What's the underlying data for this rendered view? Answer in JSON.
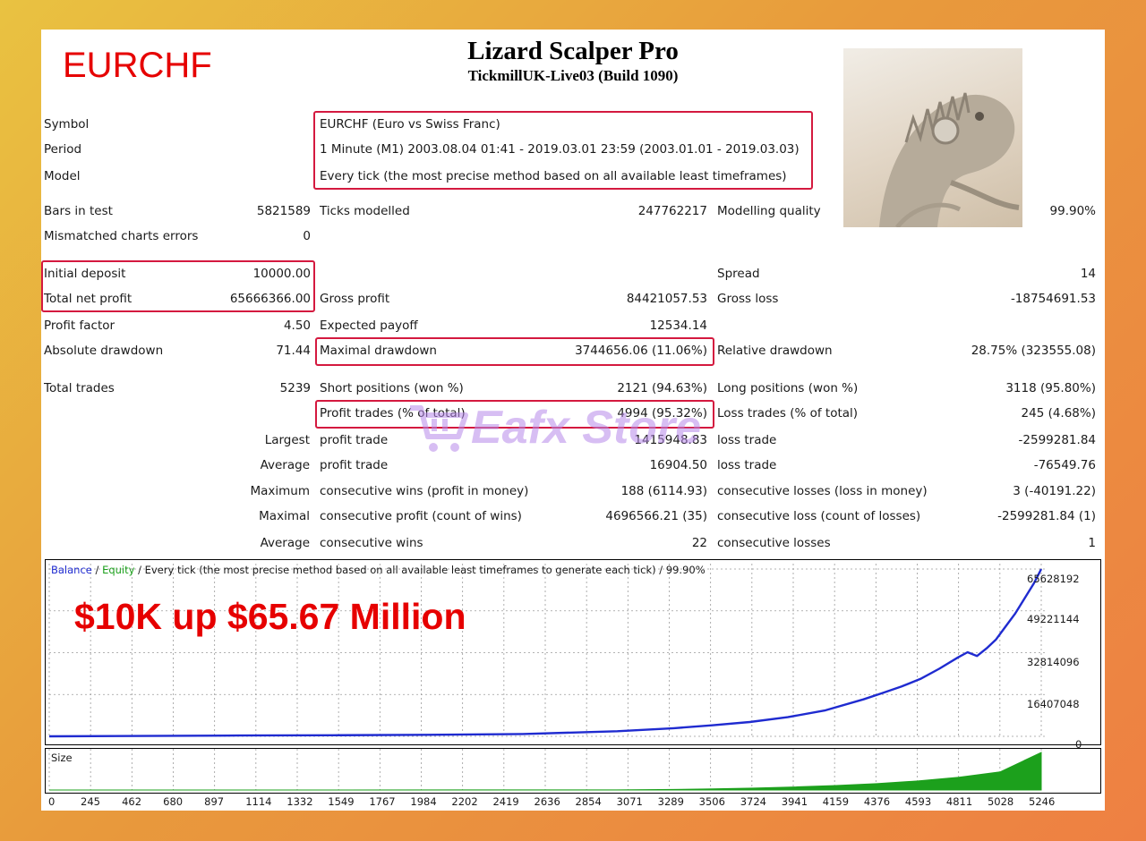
{
  "report": {
    "symbol_big": "EURCHF",
    "title": "Lizard Scalper Pro",
    "subtitle": "TickmillUK-Live03 (Build 1090)",
    "watermark": "Eafx Store"
  },
  "info": [
    {
      "label": "Symbol",
      "value": "EURCHF (Euro vs Swiss Franc)"
    },
    {
      "label": "Period",
      "value": "1 Minute (M1) 2003.08.04 01:41 - 2019.03.01 23:59 (2003.01.01 - 2019.03.03)"
    },
    {
      "label": "Model",
      "value": "Every tick (the most precise method based on all available least timeframes)"
    }
  ],
  "stats": {
    "bars_in_test": {
      "label": "Bars in test",
      "value": "5821589"
    },
    "ticks_modelled": {
      "label": "Ticks modelled",
      "value": "247762217"
    },
    "modelling_quality": {
      "label": "Modelling quality",
      "value": "99.90%"
    },
    "mismatched": {
      "label": "Mismatched charts errors",
      "value": "0"
    },
    "initial_deposit": {
      "label": "Initial deposit",
      "value": "10000.00"
    },
    "spread": {
      "label": "Spread",
      "value": "14"
    },
    "total_net_profit": {
      "label": "Total net profit",
      "value": "65666366.00"
    },
    "gross_profit": {
      "label": "Gross profit",
      "value": "84421057.53"
    },
    "gross_loss": {
      "label": "Gross loss",
      "value": "-18754691.53"
    },
    "profit_factor": {
      "label": "Profit factor",
      "value": "4.50"
    },
    "expected_payoff": {
      "label": "Expected payoff",
      "value": "12534.14"
    },
    "absolute_drawdown": {
      "label": "Absolute drawdown",
      "value": "71.44"
    },
    "maximal_drawdown": {
      "label": "Maximal drawdown",
      "value": "3744656.06 (11.06%)"
    },
    "relative_drawdown": {
      "label": "Relative drawdown",
      "value": "28.75% (323555.08)"
    },
    "total_trades": {
      "label": "Total trades",
      "value": "5239"
    },
    "short_positions": {
      "label": "Short positions (won %)",
      "value": "2121 (94.63%)"
    },
    "long_positions": {
      "label": "Long positions (won %)",
      "value": "3118 (95.80%)"
    },
    "profit_trades": {
      "label": "Profit trades (% of total)",
      "value": "4994 (95.32%)"
    },
    "loss_trades": {
      "label": "Loss trades (% of total)",
      "value": "245 (4.68%)"
    },
    "largest": {
      "prefix": "Largest",
      "profit_label": "profit trade",
      "profit_value": "1415948.83",
      "loss_label": "loss trade",
      "loss_value": "-2599281.84"
    },
    "average": {
      "prefix": "Average",
      "profit_label": "profit trade",
      "profit_value": "16904.50",
      "loss_label": "loss trade",
      "loss_value": "-76549.76"
    },
    "maximum": {
      "prefix": "Maximum",
      "profit_label": "consecutive wins (profit in money)",
      "profit_value": "188 (6114.93)",
      "loss_label": "consecutive losses (loss in money)",
      "loss_value": "3 (-40191.22)"
    },
    "maximal": {
      "prefix": "Maximal",
      "profit_label": "consecutive profit (count of wins)",
      "profit_value": "4696566.21 (35)",
      "loss_label": "consecutive loss (count of losses)",
      "loss_value": "-2599281.84 (1)"
    },
    "average_consec": {
      "prefix": "Average",
      "profit_label": "consecutive wins",
      "profit_value": "22",
      "loss_label": "consecutive losses",
      "loss_value": "1"
    }
  },
  "chart_data": [
    {
      "type": "line",
      "legend_balance": "Balance",
      "legend_sep": " / ",
      "legend_equity": "Equity",
      "legend_rest": " / Every tick (the most precise method based on all available least timeframes to generate each tick) / 99.90%",
      "annotation": "$10K up $65.67 Million",
      "grid": true,
      "y_ticks": [
        "65628192",
        "49221144",
        "32814096",
        "16407048",
        "0"
      ],
      "ylim": [
        0,
        65628192
      ],
      "xlim": [
        0,
        5239
      ],
      "series": [
        {
          "name": "Balance",
          "color": "#1f2bd0",
          "x": [
            0,
            500,
            1000,
            1500,
            2000,
            2500,
            3000,
            3300,
            3500,
            3700,
            3900,
            4100,
            4300,
            4400,
            4500,
            4600,
            4700,
            4800,
            4850,
            4900,
            4950,
            5000,
            5050,
            5100,
            5150,
            5200,
            5239
          ],
          "y": [
            10000,
            150000,
            300000,
            420000,
            600000,
            900000,
            2000000,
            3200000,
            4300000,
            5600000,
            7500000,
            10200000,
            14500000,
            17000000,
            19500000,
            22500000,
            26500000,
            31000000,
            33000000,
            31500000,
            34500000,
            38000000,
            43000000,
            48000000,
            54000000,
            60000000,
            65628192
          ]
        }
      ]
    },
    {
      "type": "area",
      "label": "Size",
      "color": "#1ca01c",
      "x_ticks": [
        "0",
        "245",
        "462",
        "680",
        "897",
        "1114",
        "1332",
        "1549",
        "1767",
        "1984",
        "2202",
        "2419",
        "2636",
        "2854",
        "3071",
        "3289",
        "3506",
        "3724",
        "3941",
        "4159",
        "4376",
        "4593",
        "4811",
        "5028",
        "5246"
      ],
      "x": [
        0,
        3000,
        3300,
        3506,
        3724,
        3941,
        4159,
        4376,
        4593,
        4811,
        5028,
        5246
      ],
      "y": [
        0,
        0.3,
        1.5,
        3,
        5,
        8,
        12,
        17,
        24,
        34,
        48,
        100
      ]
    }
  ]
}
